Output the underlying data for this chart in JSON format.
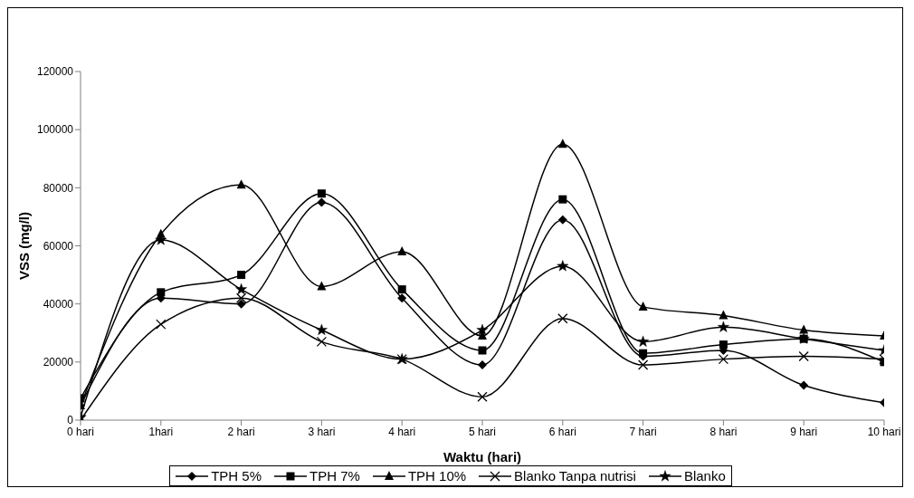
{
  "chart_data": {
    "type": "line",
    "xlabel": "Waktu (hari)",
    "ylabel": "VSS (mg/l)",
    "categories": [
      "0 hari",
      "1hari",
      "2 hari",
      "3 hari",
      "4 hari",
      "5 hari",
      "6 hari",
      "7 hari",
      "8 hari",
      "9 hari",
      "10 hari"
    ],
    "ylim": [
      0,
      120000
    ],
    "yticks": [
      0,
      20000,
      40000,
      60000,
      80000,
      100000,
      120000
    ],
    "grid": false,
    "legend": "bottom",
    "line_style": "solid",
    "series": [
      {
        "name": "TPH 5%",
        "color": "#000000",
        "marker": "diamond",
        "values": [
          5000,
          42000,
          40000,
          75000,
          42000,
          19000,
          69000,
          22000,
          24000,
          12000,
          6000
        ]
      },
      {
        "name": "TPH 7%",
        "color": "#000000",
        "marker": "square",
        "values": [
          7500,
          44000,
          50000,
          78000,
          45000,
          24000,
          76000,
          23000,
          26000,
          28000,
          20000
        ]
      },
      {
        "name": "TPH 10%",
        "color": "#000000",
        "marker": "triangle",
        "values": [
          5000,
          64000,
          81000,
          46000,
          58000,
          29000,
          95000,
          39000,
          36000,
          31000,
          29000
        ]
      },
      {
        "name": "Blanko Tanpa nutrisi",
        "color": "#000000",
        "marker": "cross",
        "values": [
          0,
          33000,
          42000,
          27000,
          21000,
          8000,
          35000,
          19000,
          21000,
          22000,
          21000
        ]
      },
      {
        "name": "Blanko",
        "color": "#000000",
        "marker": "star",
        "values": [
          1000,
          62000,
          45000,
          31000,
          21000,
          31000,
          53000,
          27000,
          32000,
          28000,
          24000
        ]
      }
    ]
  }
}
